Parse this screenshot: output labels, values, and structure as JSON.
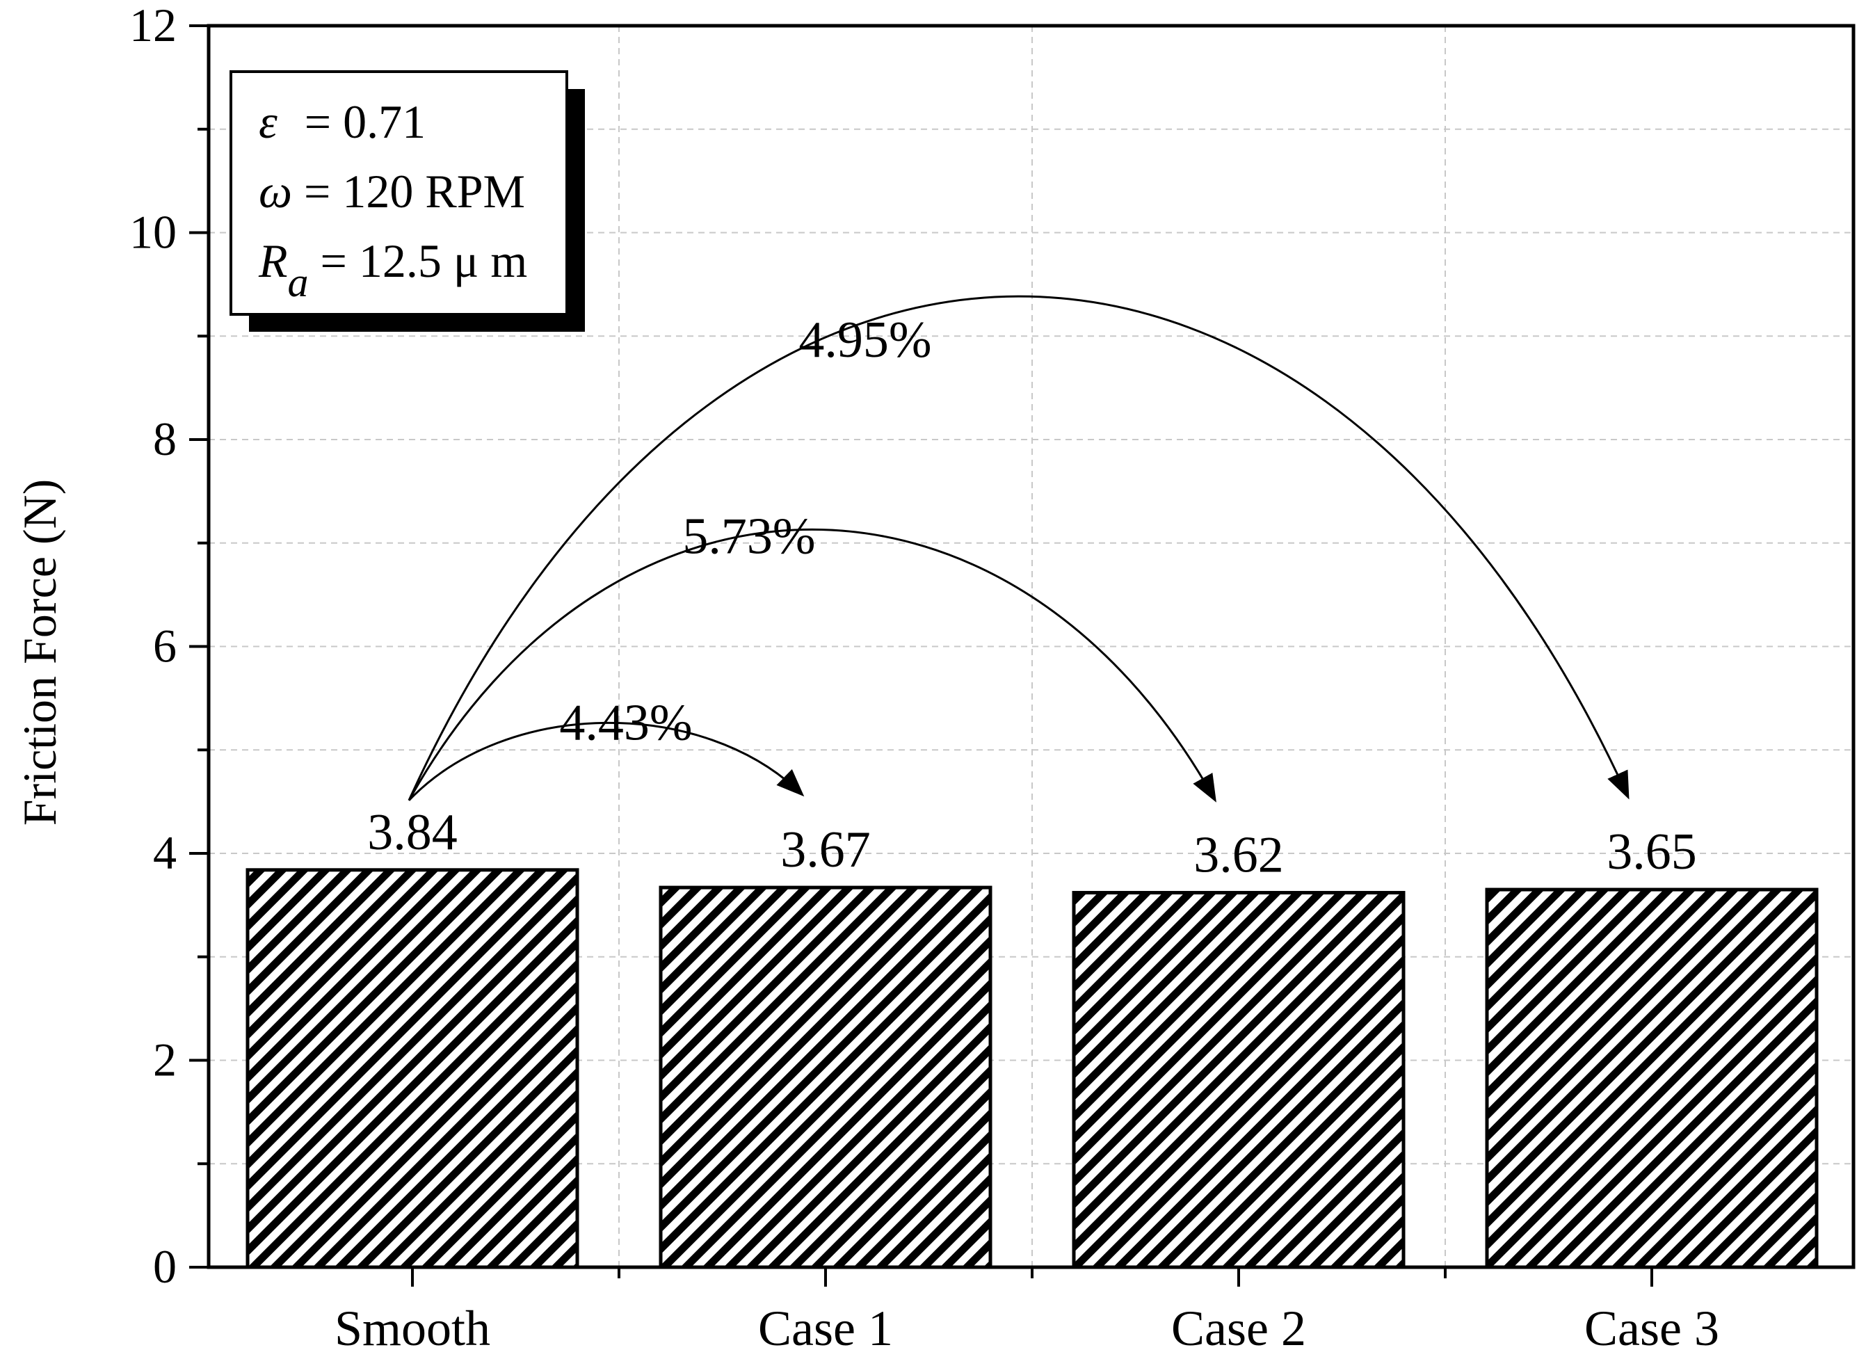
{
  "chart_data": {
    "type": "bar",
    "title": "",
    "xlabel": "",
    "ylabel": "Friction Force (N)",
    "categories": [
      "Smooth",
      "Case 1",
      "Case 2",
      "Case 3"
    ],
    "values": [
      3.84,
      3.67,
      3.62,
      3.65
    ],
    "value_labels": [
      "3.84",
      "3.67",
      "3.62",
      "3.65"
    ],
    "ylim": [
      0,
      12
    ],
    "yticks": [
      0,
      2,
      4,
      6,
      8,
      10,
      12
    ],
    "ytick_labels": [
      "0",
      "2",
      "4",
      "6",
      "8",
      "10",
      "12"
    ],
    "grid": true,
    "bar_fill": "diagonal-hatch",
    "colors": {
      "bar": "#000000",
      "grid": "#c8c8c8",
      "background": "#ffffff"
    },
    "legend_box": {
      "placement": "top-left",
      "lines": [
        {
          "symbol": "ε",
          "subscript": "",
          "text": " = 0.71"
        },
        {
          "symbol": "ω",
          "subscript": "",
          "text": " = 120 RPM"
        },
        {
          "symbol": "R",
          "subscript": "a",
          "text": " = 12.5 μ m"
        }
      ]
    },
    "annotations": [
      {
        "from": "Smooth",
        "to": "Case 1",
        "label": "4.43%"
      },
      {
        "from": "Smooth",
        "to": "Case 2",
        "label": "5.73%"
      },
      {
        "from": "Smooth",
        "to": "Case 3",
        "label": "4.95%"
      }
    ]
  }
}
